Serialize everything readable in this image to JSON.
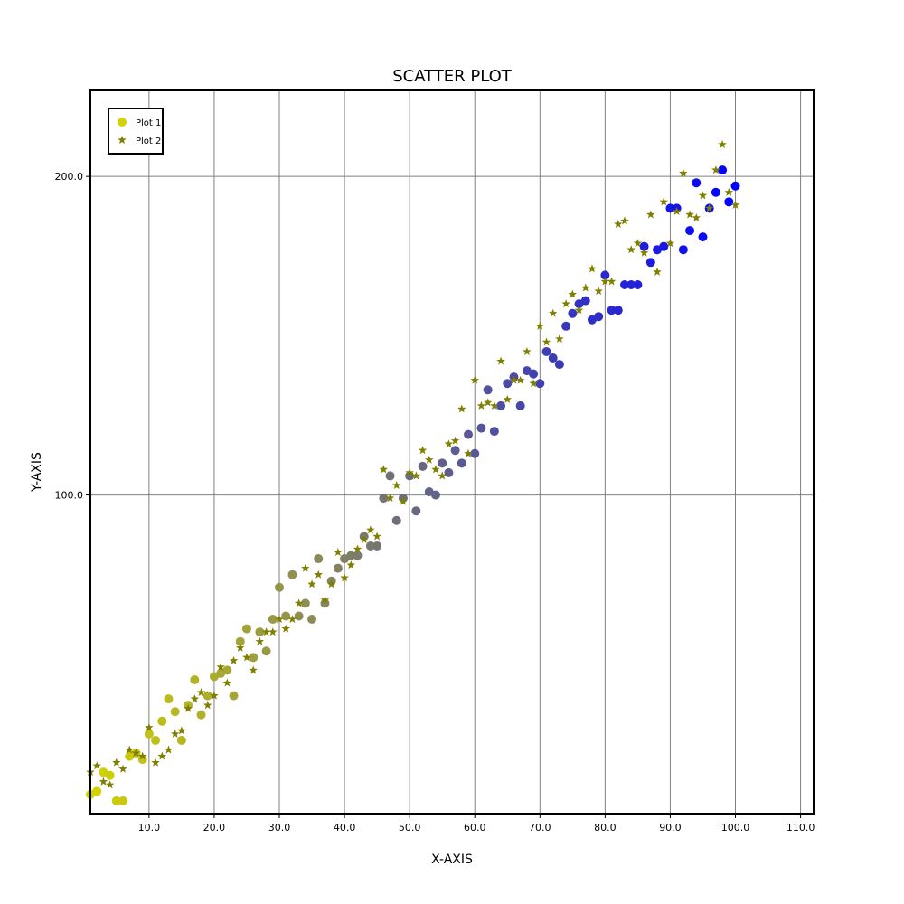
{
  "chart_data": {
    "type": "scatter",
    "title": "SCATTER PLOT",
    "xlabel": "X-AXIS",
    "ylabel": "Y-AXIS",
    "xlim": [
      1,
      112
    ],
    "ylim": [
      0,
      227
    ],
    "xticks": [
      10,
      20,
      30,
      40,
      50,
      60,
      70,
      80,
      90,
      100,
      110
    ],
    "xtick_labels": [
      "10.0",
      "20.0",
      "30.0",
      "40.0",
      "50.0",
      "60.0",
      "70.0",
      "80.0",
      "90.0",
      "100.0",
      "110.0"
    ],
    "yticks": [
      100,
      200
    ],
    "ytick_labels": [
      "100.0",
      "200.0"
    ],
    "grid": true,
    "legend_position": "top-left",
    "colors": {
      "plot1_start": "#d4d400",
      "plot1_end": "#0000ff",
      "plot2": "#808000",
      "axes": "#000000",
      "grid": "#808080"
    },
    "series": [
      {
        "name": "Plot 1",
        "marker": "circle",
        "x": [
          1,
          2,
          3,
          4,
          5,
          6,
          7,
          8,
          9,
          10,
          11,
          12,
          13,
          14,
          15,
          16,
          17,
          18,
          19,
          20,
          21,
          22,
          23,
          24,
          25,
          26,
          27,
          28,
          29,
          30,
          31,
          32,
          33,
          34,
          35,
          36,
          37,
          38,
          39,
          40,
          41,
          42,
          43,
          44,
          45,
          46,
          47,
          48,
          49,
          50,
          51,
          52,
          53,
          54,
          55,
          56,
          57,
          58,
          59,
          60,
          61,
          62,
          63,
          64,
          65,
          66,
          67,
          68,
          69,
          70,
          71,
          72,
          73,
          74,
          75,
          76,
          77,
          78,
          79,
          80,
          81,
          82,
          83,
          84,
          85,
          86,
          87,
          88,
          89,
          90,
          91,
          92,
          93,
          94,
          95,
          96,
          97,
          98,
          99,
          100
        ],
        "values": [
          6,
          7,
          13,
          12,
          4,
          4,
          18,
          19,
          17,
          25,
          23,
          29,
          36,
          32,
          23,
          34,
          42,
          31,
          37,
          43,
          44,
          45,
          37,
          54,
          58,
          49,
          57,
          51,
          61,
          71,
          62,
          75,
          62,
          66,
          61,
          80,
          66,
          73,
          77,
          80,
          81,
          81,
          87,
          84,
          84,
          99,
          106,
          92,
          99,
          106,
          95,
          109,
          101,
          100,
          110,
          107,
          114,
          110,
          119,
          113,
          121,
          133,
          120,
          128,
          135,
          137,
          128,
          139,
          138,
          135,
          145,
          143,
          141,
          153,
          157,
          160,
          161,
          155,
          156,
          169,
          158,
          158,
          166,
          166,
          166,
          178,
          173,
          177,
          178,
          190,
          190,
          177,
          183,
          198,
          181,
          190,
          195,
          202,
          192,
          197
        ]
      },
      {
        "name": "Plot 2",
        "marker": "star",
        "x": [
          1,
          2,
          3,
          4,
          5,
          6,
          7,
          8,
          9,
          10,
          11,
          12,
          13,
          14,
          15,
          16,
          17,
          18,
          19,
          20,
          21,
          22,
          23,
          24,
          25,
          26,
          27,
          28,
          29,
          30,
          31,
          32,
          33,
          34,
          35,
          36,
          37,
          38,
          39,
          40,
          41,
          42,
          43,
          44,
          45,
          46,
          47,
          48,
          49,
          50,
          51,
          52,
          53,
          54,
          55,
          56,
          57,
          58,
          59,
          60,
          61,
          62,
          63,
          64,
          65,
          66,
          67,
          68,
          69,
          70,
          71,
          72,
          73,
          74,
          75,
          76,
          77,
          78,
          79,
          80,
          81,
          82,
          83,
          84,
          85,
          86,
          87,
          88,
          89,
          90,
          91,
          92,
          93,
          94,
          95,
          96,
          97,
          98,
          99,
          100
        ],
        "values": [
          13,
          15,
          10,
          9,
          16,
          14,
          20,
          19,
          18,
          27,
          16,
          18,
          20,
          25,
          26,
          33,
          36,
          38,
          34,
          37,
          46,
          41,
          48,
          52,
          49,
          45,
          54,
          57,
          57,
          61,
          58,
          61,
          66,
          77,
          72,
          75,
          67,
          72,
          82,
          74,
          78,
          83,
          86,
          89,
          87,
          108,
          99,
          103,
          98,
          107,
          106,
          114,
          111,
          108,
          106,
          116,
          117,
          127,
          113,
          136,
          128,
          129,
          128,
          142,
          130,
          136,
          136,
          145,
          135,
          153,
          148,
          157,
          149,
          160,
          163,
          158,
          165,
          171,
          164,
          167,
          167,
          185,
          186,
          177,
          179,
          176,
          188,
          170,
          192,
          179,
          189,
          201,
          188,
          187,
          194,
          190,
          202,
          210,
          195,
          191
        ]
      }
    ]
  }
}
